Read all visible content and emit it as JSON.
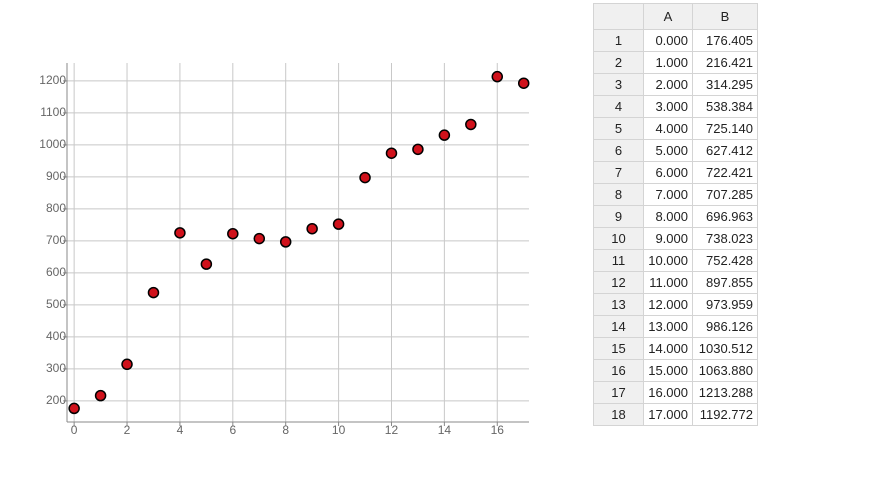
{
  "chart_data": {
    "type": "scatter",
    "x": [
      0,
      1,
      2,
      3,
      4,
      5,
      6,
      7,
      8,
      9,
      10,
      11,
      12,
      13,
      14,
      15,
      16,
      17
    ],
    "y": [
      176.405,
      216.421,
      314.295,
      538.384,
      725.14,
      627.412,
      722.421,
      707.285,
      696.963,
      738.023,
      752.428,
      897.855,
      973.959,
      986.126,
      1030.512,
      1063.88,
      1213.288,
      1192.772
    ],
    "color": "#d0111b",
    "xlim": [
      -0.27,
      17.2
    ],
    "ylim": [
      134,
      1256
    ],
    "xticks": [
      0,
      2,
      4,
      6,
      8,
      10,
      12,
      14,
      16
    ],
    "yticks": [
      200,
      300,
      400,
      500,
      600,
      700,
      800,
      900,
      1000,
      1100,
      1200
    ],
    "grid": true
  },
  "table": {
    "header": [
      "A",
      "B"
    ],
    "rows": [
      [
        1,
        "0.000",
        "176.405"
      ],
      [
        2,
        "1.000",
        "216.421"
      ],
      [
        3,
        "2.000",
        "314.295"
      ],
      [
        4,
        "3.000",
        "538.384"
      ],
      [
        5,
        "4.000",
        "725.140"
      ],
      [
        6,
        "5.000",
        "627.412"
      ],
      [
        7,
        "6.000",
        "722.421"
      ],
      [
        8,
        "7.000",
        "707.285"
      ],
      [
        9,
        "8.000",
        "696.963"
      ],
      [
        10,
        "9.000",
        "738.023"
      ],
      [
        11,
        "10.000",
        "752.428"
      ],
      [
        12,
        "11.000",
        "897.855"
      ],
      [
        13,
        "12.000",
        "973.959"
      ],
      [
        14,
        "13.000",
        "986.126"
      ],
      [
        15,
        "14.000",
        "1030.512"
      ],
      [
        16,
        "15.000",
        "1063.880"
      ],
      [
        17,
        "16.000",
        "1213.288"
      ],
      [
        18,
        "17.000",
        "1192.772"
      ]
    ]
  }
}
